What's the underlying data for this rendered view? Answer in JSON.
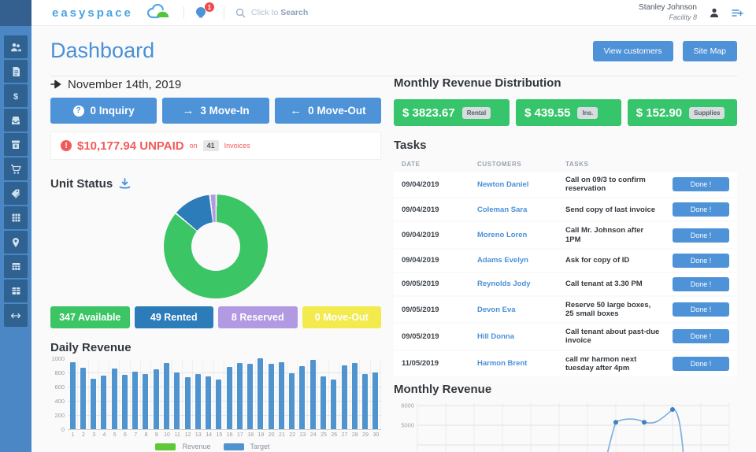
{
  "header": {
    "logo_text": "easyspace",
    "notification_badge": "1",
    "search_prefix": "Click to ",
    "search_emphasis": "Search",
    "user": {
      "name": "Stanley Johnson",
      "facility": "Facility 8"
    }
  },
  "sidebar": {
    "items": [
      {
        "id": "customers",
        "icon": "users-icon"
      },
      {
        "id": "invoices",
        "icon": "document-icon"
      },
      {
        "id": "payments",
        "icon": "dollar-icon"
      },
      {
        "id": "units",
        "icon": "inbox-icon"
      },
      {
        "id": "move-in",
        "icon": "box-download-icon"
      },
      {
        "id": "store",
        "icon": "cart-icon"
      },
      {
        "id": "discounts",
        "icon": "tag-icon"
      },
      {
        "id": "calendar",
        "icon": "grid-icon"
      },
      {
        "id": "site-map",
        "icon": "map-pin-icon"
      },
      {
        "id": "reports",
        "icon": "table-icon"
      },
      {
        "id": "ledger",
        "icon": "table2-icon"
      },
      {
        "id": "transfers",
        "icon": "arrows-horizontal-icon"
      }
    ]
  },
  "page": {
    "title": "Dashboard",
    "actions": [
      {
        "label": "View customers"
      },
      {
        "label": "Site Map"
      }
    ]
  },
  "today": {
    "date": "November 14th, 2019",
    "counters": [
      {
        "icon": "question-icon",
        "label": "0 Inquiry"
      },
      {
        "icon": "arrow-right-icon",
        "label": "3 Move-In"
      },
      {
        "icon": "arrow-left-icon",
        "label": "0 Move-Out"
      }
    ]
  },
  "unpaid_alert": {
    "amount": "$10,177.94 UNPAID",
    "preposition": "on",
    "invoice_count": "41",
    "invoice_label": "Invoices"
  },
  "unit_status": {
    "title": "Unit Status",
    "legend": [
      {
        "label": "347 Available",
        "color": "#3cc564"
      },
      {
        "label": "49 Rented",
        "color": "#2d7cba"
      },
      {
        "label": "8 Reserved",
        "color": "#b29ae2"
      },
      {
        "label": "0 Move-Out",
        "color": "#f3ea4e"
      }
    ]
  },
  "daily_revenue": {
    "title": "Daily Revenue"
  },
  "monthly_distribution": {
    "title": "Monthly Revenue Distribution",
    "card_color": "#37c56b",
    "cards": [
      {
        "amount": "$ 3823.67",
        "tag": "Rental"
      },
      {
        "amount": "$ 439.55",
        "tag": "Ins."
      },
      {
        "amount": "$ 152.90",
        "tag": "Supplies"
      }
    ]
  },
  "tasks": {
    "title": "Tasks",
    "columns": [
      "DATE",
      "CUSTOMERS",
      "TASKS"
    ],
    "done_label": "Done !",
    "rows": [
      {
        "date": "09/04/2019",
        "customer": "Newton Daniel",
        "task": "Call on 09/3 to confirm reservation"
      },
      {
        "date": "09/04/2019",
        "customer": "Coleman Sara",
        "task": "Send copy of last invoice"
      },
      {
        "date": "09/04/2019",
        "customer": "Moreno Loren",
        "task": "Call Mr. Johnson after 1PM"
      },
      {
        "date": "09/04/2019",
        "customer": "Adams Evelyn",
        "task": "Ask for copy of ID"
      },
      {
        "date": "09/05/2019",
        "customer": "Reynolds Jody",
        "task": "Call tenant at 3.30 PM"
      },
      {
        "date": "09/05/2019",
        "customer": "Devon Eva",
        "task": "Reserve 50 large boxes, 25 small boxes"
      },
      {
        "date": "09/05/2019",
        "customer": "Hill Donna",
        "task": "Call tenant about past-due invoice"
      },
      {
        "date": "11/05/2019",
        "customer": "Harmon Brent",
        "task": "call mr harmon next tuesday after 4pm"
      }
    ]
  },
  "monthly_revenue": {
    "title": "Monthly Revenue"
  },
  "chart_data": [
    {
      "type": "pie",
      "title": "Unit Status",
      "donut": true,
      "labels": [
        "Available",
        "Rented",
        "Reserved",
        "Move-Out"
      ],
      "values": [
        347,
        49,
        8,
        0
      ],
      "colors": [
        "#3cc564",
        "#2d7cba",
        "#b29ae2",
        "#f3ea4e"
      ]
    },
    {
      "type": "bar",
      "title": "Daily Revenue",
      "categories": [
        1,
        2,
        3,
        4,
        5,
        6,
        7,
        8,
        9,
        10,
        11,
        12,
        13,
        14,
        15,
        16,
        17,
        18,
        19,
        20,
        21,
        22,
        23,
        24,
        25,
        26,
        27,
        28,
        29,
        30
      ],
      "series": [
        {
          "name": "Revenue",
          "color": "#5dc938",
          "values": [
            0,
            0,
            0,
            0,
            0,
            0,
            0,
            0,
            0,
            0,
            0,
            0,
            0,
            0,
            0,
            0,
            0,
            0,
            0,
            0,
            0,
            0,
            0,
            0,
            0,
            0,
            0,
            0,
            0,
            0
          ]
        },
        {
          "name": "Target",
          "color": "#4f93cf",
          "values": [
            940,
            870,
            710,
            755,
            860,
            770,
            815,
            775,
            840,
            935,
            800,
            730,
            775,
            740,
            705,
            880,
            930,
            920,
            1000,
            920,
            950,
            790,
            890,
            975,
            740,
            705,
            895,
            930,
            775,
            795
          ]
        }
      ],
      "ylim": [
        0,
        1000
      ],
      "yticks": [
        0,
        200,
        400,
        600,
        800,
        1000
      ],
      "legend_position": "bottom"
    },
    {
      "type": "line",
      "title": "Monthly Revenue",
      "color": "#7fb0e0",
      "point_color": "#3f80c5",
      "yticks_visible": [
        6000,
        5000
      ],
      "x": [
        8,
        9,
        10
      ],
      "values": [
        5150,
        5150,
        5800
      ]
    }
  ]
}
